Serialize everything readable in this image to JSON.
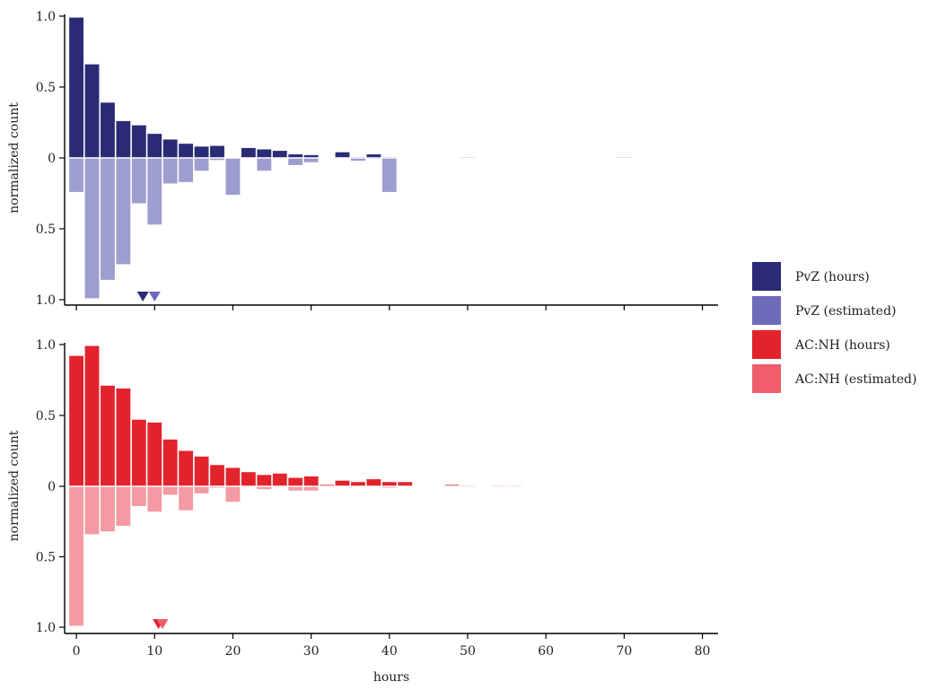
{
  "chart_data": {
    "type": "bar",
    "xlabel": "hours",
    "ylabel": "normalized count",
    "xlim": [
      -1.5,
      82
    ],
    "x_ticks": [
      0,
      10,
      20,
      30,
      40,
      50,
      60,
      70,
      80
    ],
    "y_ticks": [
      1.0,
      0.5,
      0,
      0.5,
      1.0
    ],
    "y_tick_labels": [
      "1.0",
      "0.5",
      "0",
      "0.5",
      "1.0"
    ],
    "bin_width": 2,
    "legend_position": "right",
    "legend": [
      {
        "label": "PvZ (hours)",
        "color": "#2a2b74"
      },
      {
        "label": "PvZ (estimated)",
        "color": "#6d6bb9"
      },
      {
        "label": "AC:NH (hours)",
        "color": "#e3232c"
      },
      {
        "label": "AC:NH (estimated)",
        "color": "#ef5e6a"
      }
    ],
    "panels": [
      {
        "name": "PvZ",
        "series": [
          {
            "name": "PvZ (hours)",
            "direction": "up",
            "color": "#2a2b74",
            "x": [
              0,
              2,
              4,
              6,
              8,
              10,
              12,
              14,
              16,
              18,
              22,
              24,
              26,
              28,
              30,
              34,
              36,
              38,
              40,
              50,
              70
            ],
            "values": [
              0.99,
              0.66,
              0.39,
              0.26,
              0.23,
              0.17,
              0.13,
              0.1,
              0.08,
              0.085,
              0.07,
              0.06,
              0.05,
              0.025,
              0.02,
              0.04,
              0.005,
              0.025,
              0.005,
              0.005,
              0.005
            ]
          },
          {
            "name": "PvZ (estimated)",
            "direction": "down",
            "color": "#9e9dd0",
            "x": [
              0,
              2,
              4,
              6,
              8,
              10,
              12,
              14,
              16,
              18,
              20,
              24,
              28,
              30,
              36,
              38,
              40
            ],
            "values": [
              0.24,
              0.99,
              0.86,
              0.75,
              0.32,
              0.47,
              0.18,
              0.17,
              0.09,
              0.015,
              0.26,
              0.09,
              0.05,
              0.03,
              0.02,
              0.005,
              0.24
            ]
          }
        ],
        "markers": [
          {
            "x": 8.5,
            "color": "#2a2b74"
          },
          {
            "x": 10,
            "color": "#6d6bb9"
          }
        ]
      },
      {
        "name": "AC:NH",
        "series": [
          {
            "name": "AC:NH (hours)",
            "direction": "up",
            "color": "#e3232c",
            "x": [
              0,
              2,
              4,
              6,
              8,
              10,
              12,
              14,
              16,
              18,
              20,
              22,
              24,
              26,
              28,
              30,
              32,
              34,
              36,
              38,
              40,
              42,
              48,
              50,
              54,
              56
            ],
            "values": [
              0.92,
              0.99,
              0.71,
              0.69,
              0.47,
              0.45,
              0.33,
              0.25,
              0.21,
              0.15,
              0.13,
              0.1,
              0.08,
              0.09,
              0.06,
              0.07,
              0.01,
              0.04,
              0.03,
              0.05,
              0.03,
              0.03,
              0.01,
              0.005,
              0.005,
              0.005
            ]
          },
          {
            "name": "AC:NH (estimated)",
            "direction": "down",
            "color": "#f39aa2",
            "x": [
              0,
              2,
              4,
              6,
              8,
              10,
              12,
              14,
              16,
              18,
              20,
              24,
              28,
              30,
              40
            ],
            "values": [
              0.99,
              0.34,
              0.32,
              0.28,
              0.14,
              0.18,
              0.06,
              0.17,
              0.05,
              0.01,
              0.11,
              0.02,
              0.03,
              0.03,
              0.01
            ]
          }
        ],
        "markers": [
          {
            "x": 10.5,
            "color": "#e3232c"
          },
          {
            "x": 11,
            "color": "#ef5e6a"
          }
        ]
      }
    ]
  }
}
